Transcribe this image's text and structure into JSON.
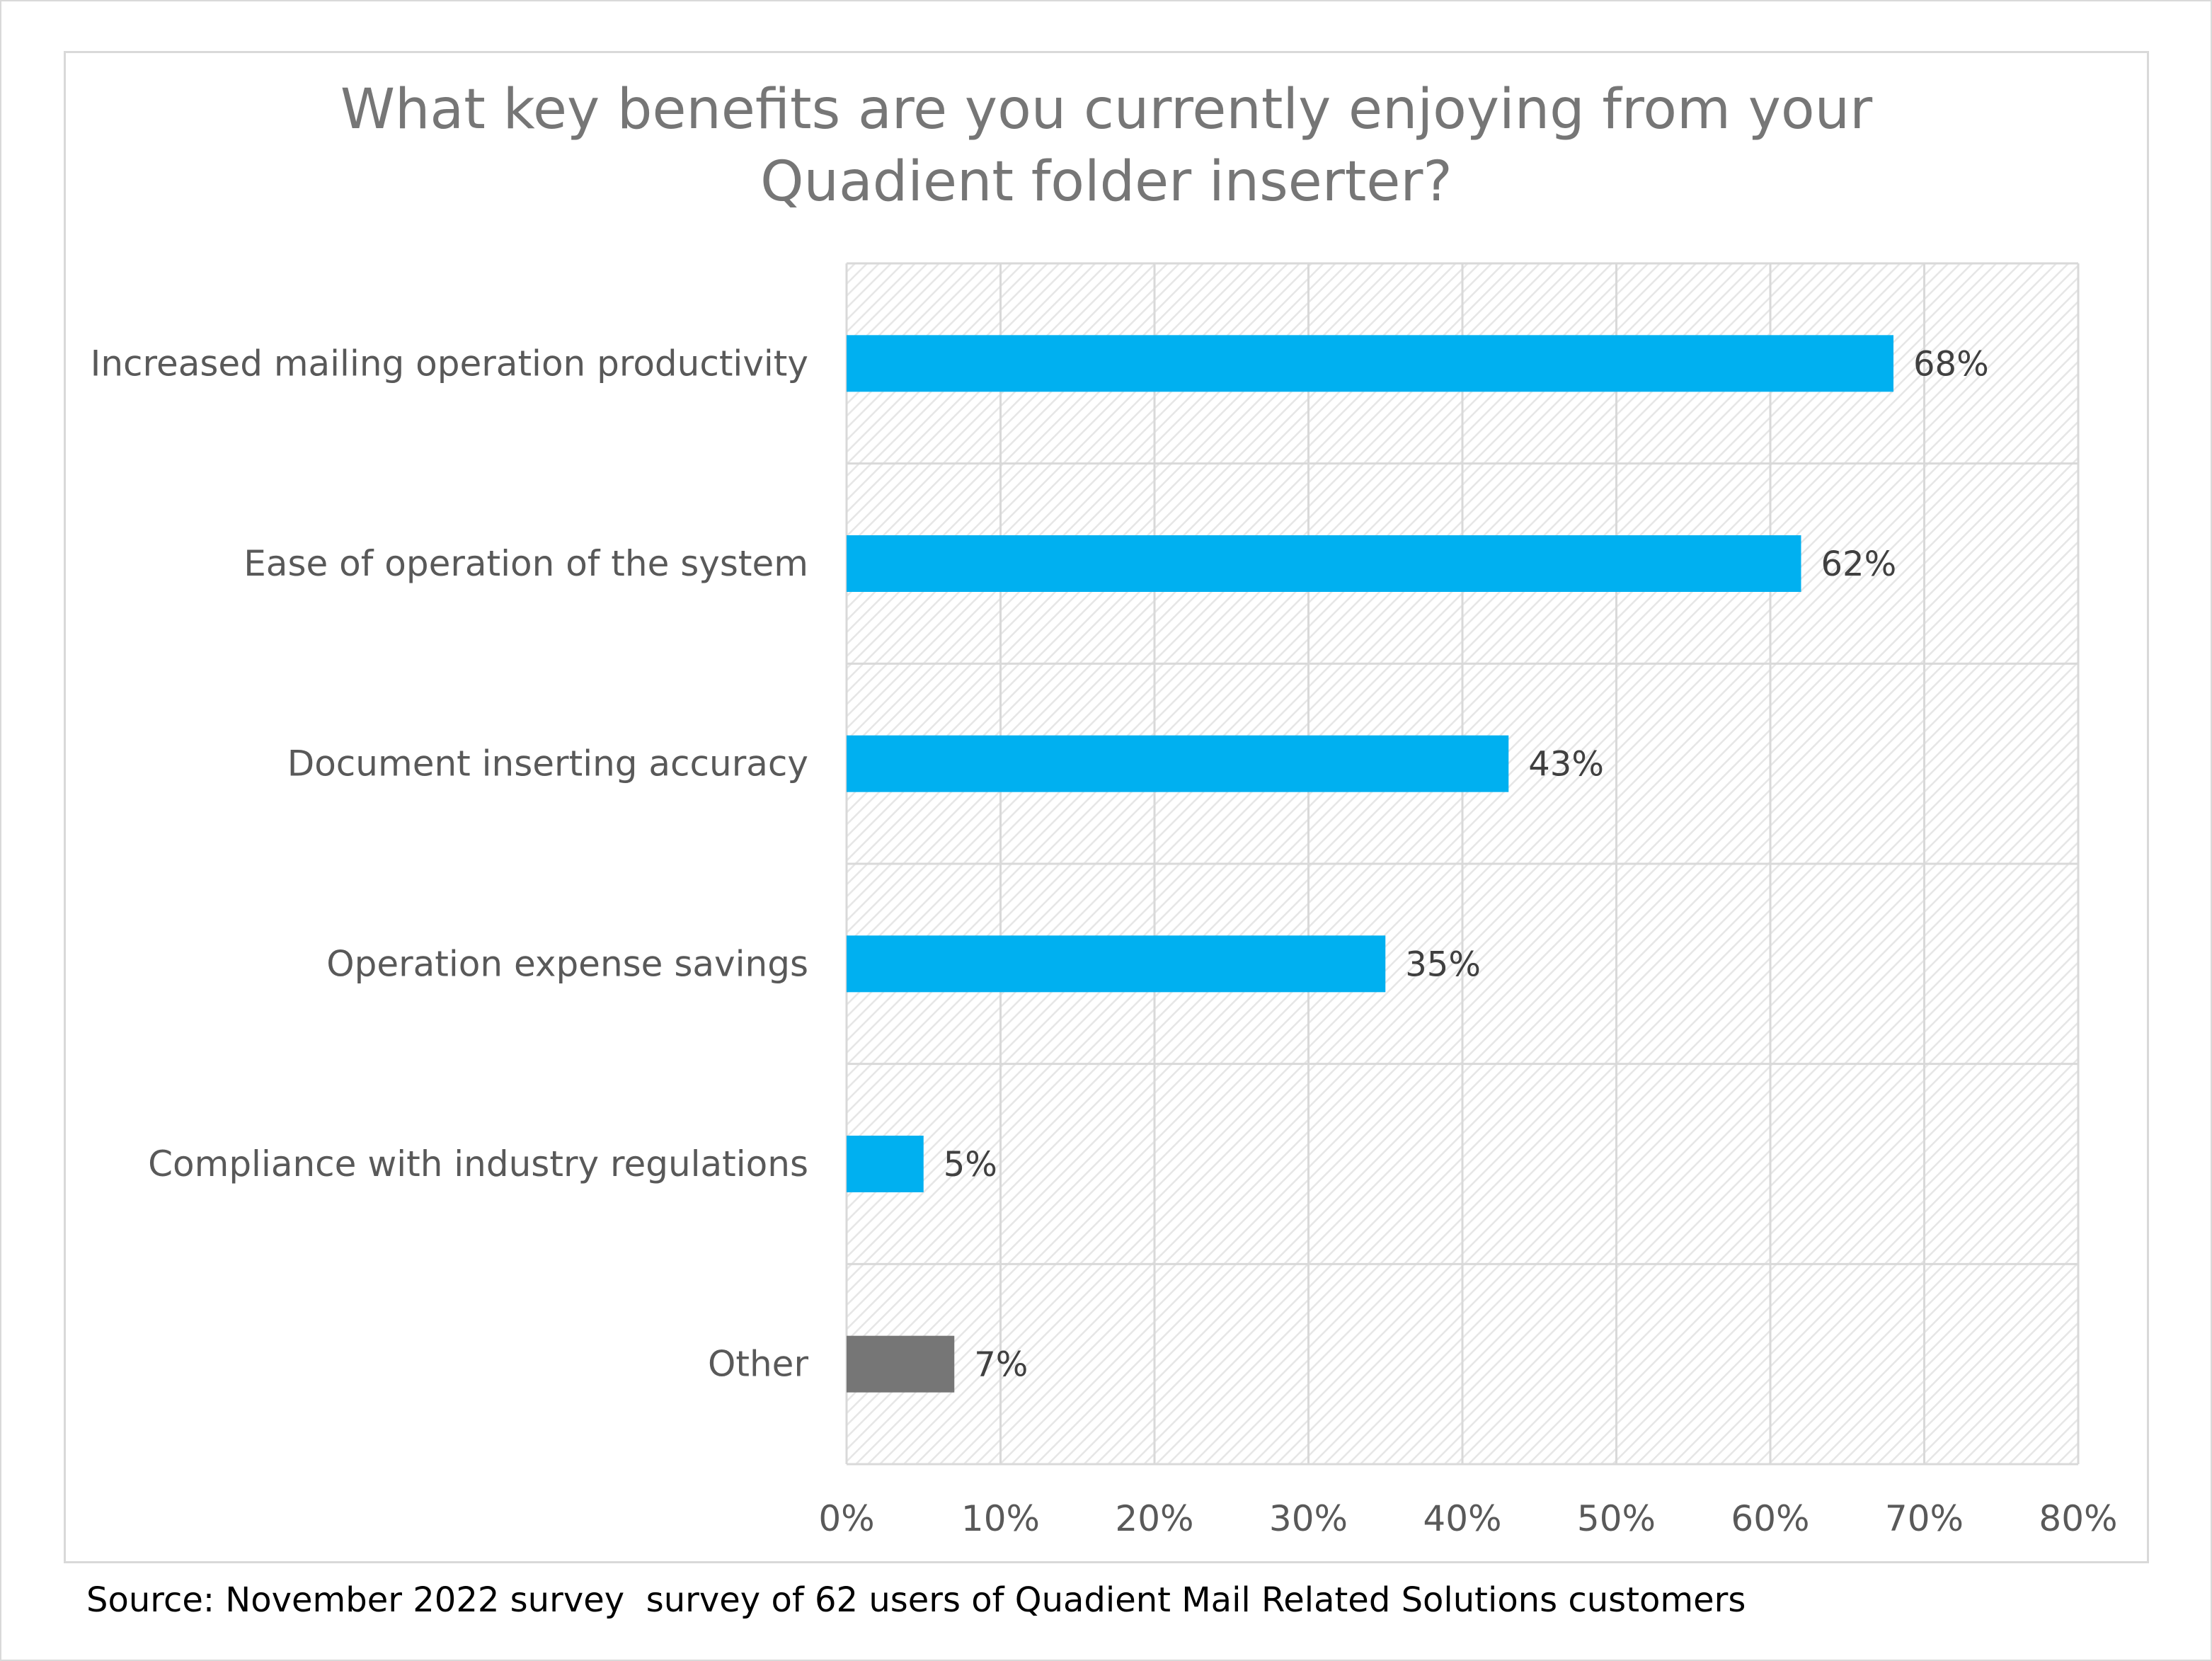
{
  "title_lines": [
    "What key benefits are you currently enjoying from your",
    "Quadient folder inserter?"
  ],
  "source": "Source: November 2022 survey  survey of 62 users of Quadient Mail Related Solutions customers",
  "colors": {
    "primary_bar": "#00b0f0",
    "other_bar": "#767676",
    "title": "#767676",
    "gridline": "#d9d9d9",
    "hatch_background": "#ececec"
  },
  "chart_data": {
    "type": "bar",
    "orientation": "horizontal",
    "title": "What key benefits are you currently enjoying from your Quadient folder inserter?",
    "categories": [
      "Increased mailing operation productivity",
      "Ease of operation of the system",
      "Document inserting accuracy",
      "Operation expense savings",
      "Compliance with industry regulations",
      "Other"
    ],
    "values": [
      0.68,
      0.62,
      0.43,
      0.35,
      0.05,
      0.07
    ],
    "data_labels": [
      "68%",
      "62%",
      "43%",
      "35%",
      "5%",
      "7%"
    ],
    "bar_colors": [
      "#00b0f0",
      "#00b0f0",
      "#00b0f0",
      "#00b0f0",
      "#00b0f0",
      "#767676"
    ],
    "xlim": [
      0,
      0.8
    ],
    "xticks": [
      0,
      0.1,
      0.2,
      0.3,
      0.4,
      0.5,
      0.6,
      0.7,
      0.8
    ],
    "xtick_labels": [
      "0%",
      "10%",
      "20%",
      "30%",
      "40%",
      "50%",
      "60%",
      "70%",
      "80%"
    ],
    "xlabel": "",
    "ylabel": "",
    "grid": true,
    "legend": false,
    "plot_background": "diagonal hatch"
  }
}
